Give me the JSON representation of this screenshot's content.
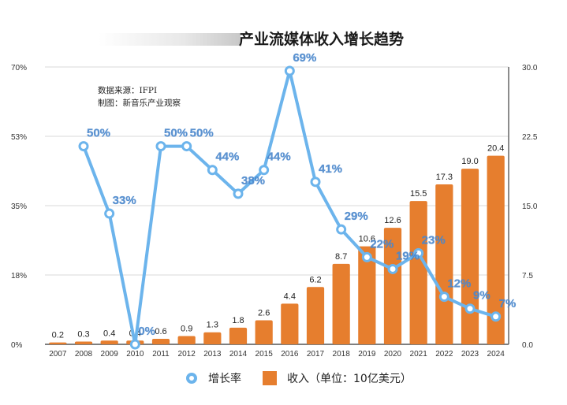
{
  "chart_data": {
    "type": "bar+line",
    "title": "产业流媒体收入增长趋势",
    "categories": [
      "2007",
      "2008",
      "2009",
      "2010",
      "2011",
      "2012",
      "2013",
      "2014",
      "2015",
      "2016",
      "2017",
      "2018",
      "2019",
      "2020",
      "2021",
      "2022",
      "2023",
      "2024"
    ],
    "series": [
      {
        "name": "收入（单位：10亿美元）",
        "type": "bar",
        "axis": "right",
        "color": "#e67e2e",
        "values": [
          0.2,
          0.3,
          0.4,
          0.4,
          0.6,
          0.9,
          1.3,
          1.8,
          2.6,
          4.4,
          6.2,
          8.7,
          10.6,
          12.6,
          15.5,
          17.3,
          19.0,
          20.4
        ],
        "labels": [
          "0.2",
          "0.3",
          "0.4",
          "0.4",
          "0.6",
          "0.9",
          "1.3",
          "1.8",
          "2.6",
          "4.4",
          "6.2",
          "8.7",
          "10.6",
          "12.6",
          "15.5",
          "17.3",
          "19.0",
          "20.4"
        ]
      },
      {
        "name": "增长率",
        "type": "line",
        "axis": "left",
        "color": "#6cb4ec",
        "values": [
          null,
          50,
          33,
          0,
          50,
          50,
          44,
          38,
          44,
          69,
          41,
          29,
          22,
          19,
          23,
          12,
          9,
          7
        ],
        "labels": [
          null,
          "50%",
          "33%",
          "0%",
          "50%",
          "50%",
          "44%",
          "38%",
          "44%",
          "69%",
          "41%",
          "29%",
          "22%",
          "19%",
          "23%",
          "12%",
          "9%",
          "7%"
        ]
      }
    ],
    "left_axis": {
      "ticks": [
        "0%",
        "18%",
        "35%",
        "53%",
        "70%"
      ],
      "range": [
        0,
        70
      ]
    },
    "right_axis": {
      "ticks": [
        "0.0",
        "7.5",
        "15.0",
        "22.5",
        "30.0"
      ],
      "range": [
        0,
        30
      ]
    },
    "grid": true,
    "legend": {
      "position": "bottom",
      "items": [
        "增长率",
        "收入（单位：10亿美元）"
      ]
    },
    "annotations": [
      "数据来源：IFPI",
      "制图：新音乐产业观察"
    ]
  }
}
